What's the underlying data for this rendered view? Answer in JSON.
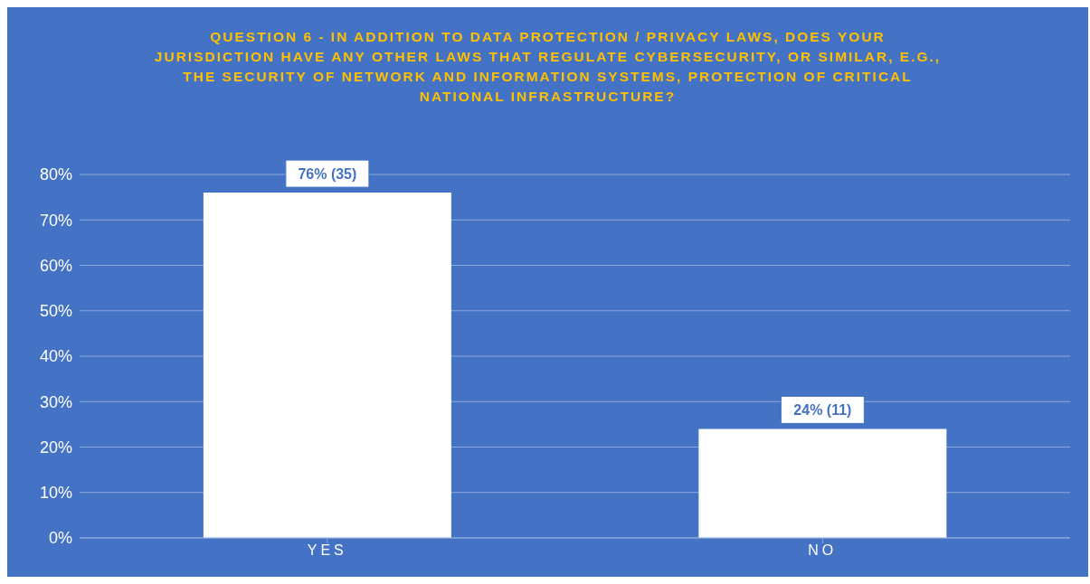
{
  "chart_data": {
    "type": "bar",
    "title": "QUESTION 6 - IN ADDITION TO DATA PROTECTION / PRIVACY LAWS, DOES YOUR JURISDICTION HAVE ANY OTHER LAWS THAT REGULATE CYBERSECURITY, OR SIMILAR, E.G., THE SECURITY OF NETWORK AND INFORMATION SYSTEMS, PROTECTION OF CRITICAL NATIONAL INFRASTRUCTURE?",
    "categories": [
      "YES",
      "NO"
    ],
    "values": [
      76,
      24
    ],
    "value_labels": [
      "76% (35)",
      "24% (11)"
    ],
    "color": "#ffffff",
    "ylim": [
      0,
      80
    ],
    "yticks": [
      {
        "value": 0,
        "label": "0%"
      },
      {
        "value": 10,
        "label": "10%"
      },
      {
        "value": 20,
        "label": "20%"
      },
      {
        "value": 30,
        "label": "30%"
      },
      {
        "value": 40,
        "label": "40%"
      },
      {
        "value": 50,
        "label": "50%"
      },
      {
        "value": 60,
        "label": "60%"
      },
      {
        "value": 70,
        "label": "70%"
      },
      {
        "value": 80,
        "label": "80%"
      }
    ],
    "grid": "y"
  }
}
